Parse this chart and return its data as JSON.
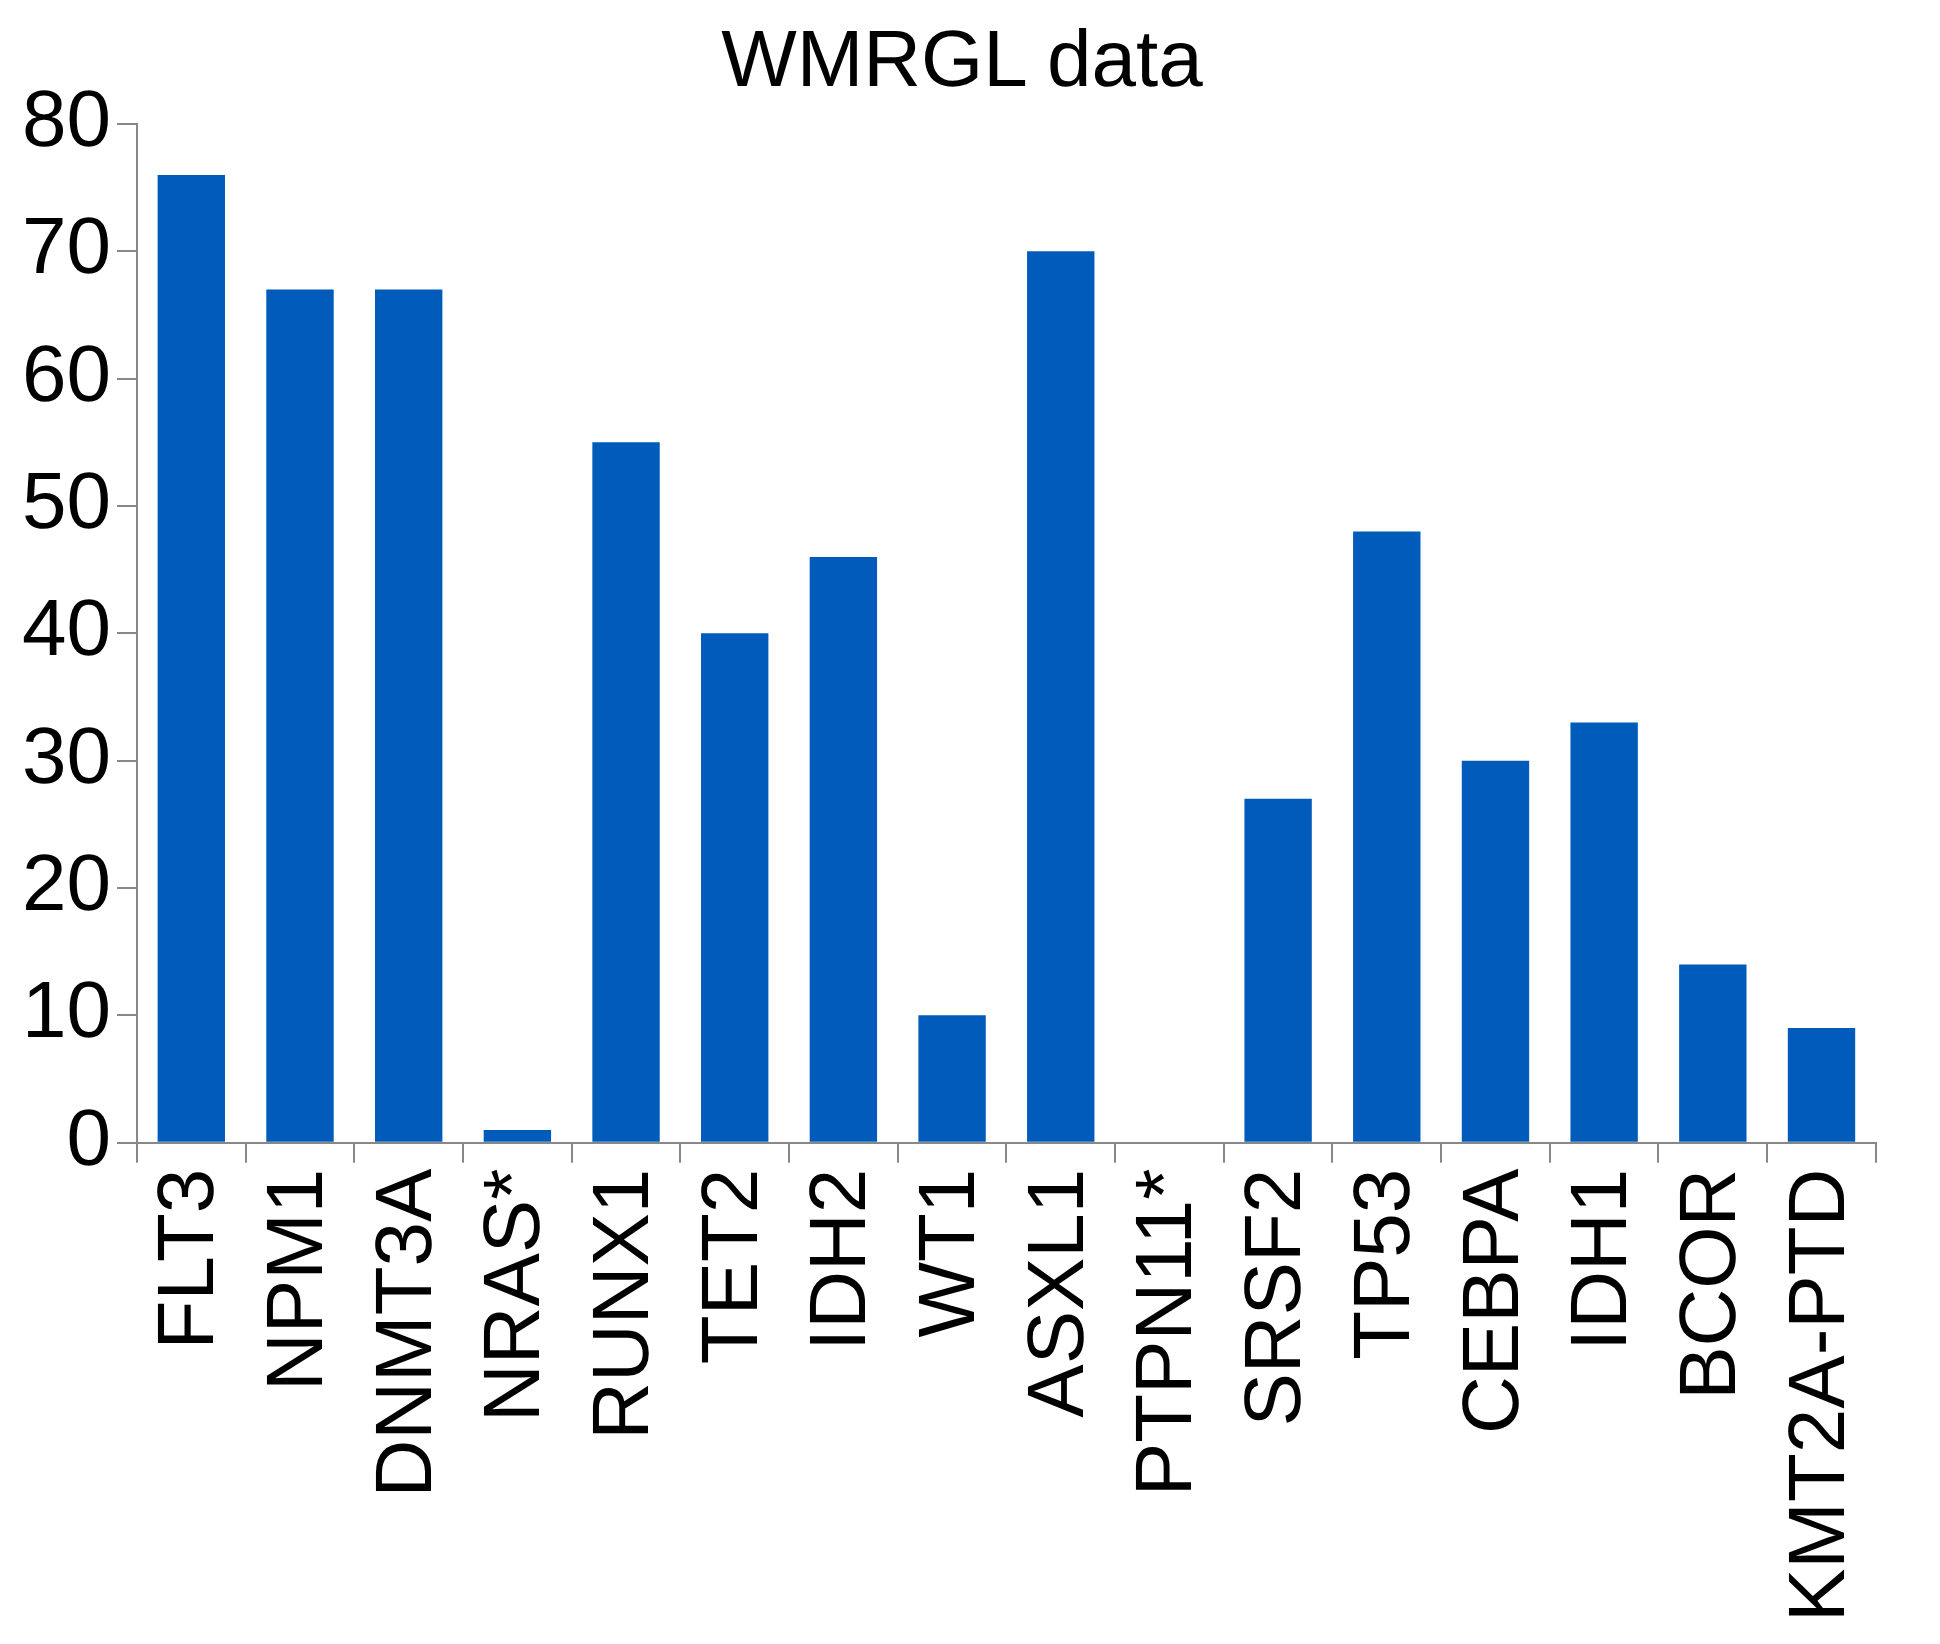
{
  "chart_data": {
    "type": "bar",
    "title": "WMRGL data",
    "categories": [
      "FLT3",
      "NPM1",
      "DNMT3A",
      "NRAS*",
      "RUNX1",
      "TET2",
      "IDH2",
      "WT1",
      "ASXL1",
      "PTPN11*",
      "SRSF2",
      "TP53",
      "CEBPA",
      "IDH1",
      "BCOR",
      "KMT2A-PTD"
    ],
    "values": [
      76,
      67,
      67,
      1,
      55,
      40,
      46,
      10,
      70,
      0,
      27,
      48,
      30,
      33,
      14,
      9
    ],
    "color": "#005bbb",
    "ylim": [
      0,
      80
    ],
    "yticks": [
      0,
      10,
      20,
      30,
      40,
      50,
      60,
      70,
      80
    ],
    "grid": false,
    "legend": false
  }
}
